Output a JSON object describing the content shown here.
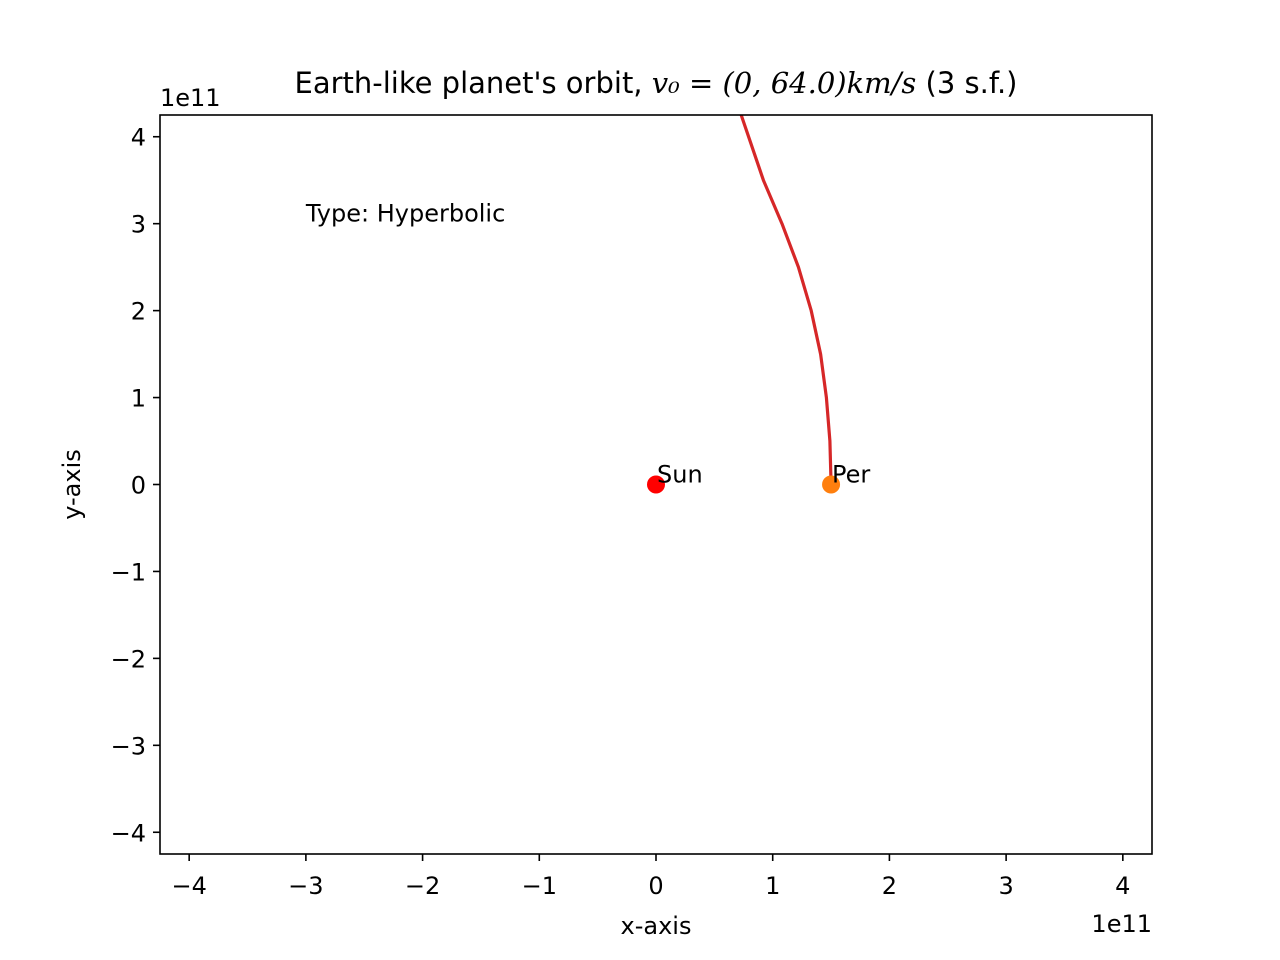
{
  "chart_data": {
    "type": "scatter",
    "title": {
      "prefix": "Earth-like planet's orbit, ",
      "math": "v₀ = (0, 64.0)km/s",
      "suffix": " (3 s.f.)"
    },
    "xlabel": "x-axis",
    "ylabel": "y-axis",
    "x_offset_label": "1e11",
    "y_offset_label": "1e11",
    "xlim": [
      -4.25,
      4.25
    ],
    "ylim": [
      -4.25,
      4.25
    ],
    "ticks": [
      -4,
      -3,
      -2,
      -1,
      0,
      1,
      2,
      3,
      4
    ],
    "tick_labels": [
      "−4",
      "−3",
      "−2",
      "−1",
      "0",
      "1",
      "2",
      "3",
      "4"
    ],
    "annotation": "Type: Hyperbolic",
    "annotation_pos": [
      -3.0,
      3.0
    ],
    "orbit": {
      "color": "#d62728",
      "x": [
        1.5,
        1.49,
        1.46,
        1.41,
        1.33,
        1.22,
        1.08,
        0.92,
        0.73
      ],
      "y": [
        0.0,
        0.5,
        1.0,
        1.5,
        2.0,
        2.5,
        3.0,
        3.5,
        4.25
      ]
    },
    "points": [
      {
        "label": "Sun",
        "x": 0.0,
        "y": 0.0,
        "color": "#ff0000"
      },
      {
        "label": "Per",
        "x": 1.5,
        "y": 0.0,
        "color": "#ff7f0e"
      }
    ]
  }
}
